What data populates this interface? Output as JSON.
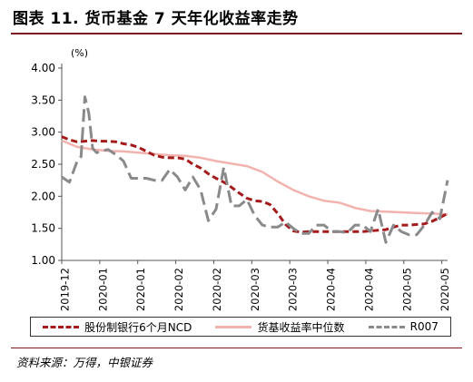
{
  "header": {
    "title": "图表 11. 货币基金 7 天年化收益率走势"
  },
  "footer": {
    "source": "资料来源：万得，中银证券"
  },
  "chart_data": {
    "type": "line",
    "y_unit_label": "(%)",
    "ylim": [
      1.0,
      4.0
    ],
    "y_ticks": [
      "1.00",
      "1.50",
      "2.00",
      "2.50",
      "3.00",
      "3.50",
      "4.00"
    ],
    "x_tick_labels": [
      "2019-12",
      "2020-01",
      "2020-01",
      "2020-02",
      "2020-02",
      "2020-03",
      "2020-03",
      "2020-04",
      "2020-04",
      "2020-05",
      "2020-05"
    ],
    "legend_position": "bottom",
    "grid": false,
    "series": [
      {
        "name": "股份制银行6个月NCD",
        "color": "#a51b1b",
        "dash": "long-dash",
        "t": [
          0,
          2,
          4,
          6,
          8,
          10,
          12,
          14,
          16,
          18,
          20,
          22,
          24,
          26,
          28,
          30,
          32,
          34,
          36,
          38,
          40,
          42,
          44,
          46,
          48,
          50,
          52,
          54,
          56,
          58,
          60,
          62,
          64,
          66,
          68,
          70,
          72,
          74,
          76,
          78,
          80,
          82,
          84,
          86,
          88,
          90,
          92,
          94,
          96,
          98,
          100
        ],
        "values": [
          2.93,
          2.88,
          2.85,
          2.86,
          2.87,
          2.86,
          2.86,
          2.85,
          2.82,
          2.8,
          2.76,
          2.7,
          2.64,
          2.61,
          2.6,
          2.6,
          2.58,
          2.5,
          2.44,
          2.35,
          2.28,
          2.22,
          2.14,
          2.05,
          1.97,
          1.93,
          1.92,
          1.87,
          1.73,
          1.56,
          1.46,
          1.44,
          1.45,
          1.45,
          1.45,
          1.45,
          1.45,
          1.45,
          1.45,
          1.45,
          1.46,
          1.47,
          1.48,
          1.52,
          1.55,
          1.55,
          1.56,
          1.57,
          1.61,
          1.67,
          1.73
        ]
      },
      {
        "name": "货基收益率中位数",
        "color": "#f2b3ae",
        "dash": "solid",
        "t": [
          0,
          4,
          8,
          12,
          16,
          20,
          24,
          28,
          32,
          36,
          40,
          44,
          48,
          52,
          56,
          60,
          64,
          68,
          72,
          76,
          80,
          84,
          88,
          92,
          96,
          100
        ],
        "values": [
          2.87,
          2.77,
          2.73,
          2.71,
          2.7,
          2.68,
          2.66,
          2.64,
          2.63,
          2.6,
          2.55,
          2.51,
          2.47,
          2.38,
          2.23,
          2.1,
          2.0,
          1.93,
          1.9,
          1.82,
          1.77,
          1.76,
          1.75,
          1.74,
          1.73,
          1.72
        ]
      },
      {
        "name": "R007",
        "color": "#8a8a8a",
        "dash": "long-dash",
        "t": [
          0,
          2,
          4,
          5,
          6,
          7,
          8,
          9,
          10,
          12,
          14,
          16,
          18,
          20,
          22,
          24,
          26,
          28,
          30,
          32,
          34,
          36,
          38,
          40,
          42,
          44,
          46,
          48,
          50,
          52,
          54,
          56,
          58,
          60,
          62,
          64,
          66,
          68,
          70,
          72,
          74,
          76,
          78,
          80,
          82,
          84,
          86,
          88,
          90,
          92,
          94,
          96,
          98,
          100
        ],
        "values": [
          2.3,
          2.22,
          2.55,
          2.62,
          3.55,
          3.3,
          2.75,
          2.68,
          2.7,
          2.73,
          2.65,
          2.55,
          2.28,
          2.28,
          2.28,
          2.25,
          2.25,
          2.42,
          2.3,
          2.1,
          2.3,
          2.1,
          1.62,
          1.8,
          2.45,
          1.85,
          1.85,
          1.95,
          1.7,
          1.55,
          1.52,
          1.52,
          1.6,
          1.5,
          1.42,
          1.42,
          1.55,
          1.55,
          1.45,
          1.45,
          1.43,
          1.55,
          1.55,
          1.45,
          1.8,
          1.28,
          1.55,
          1.45,
          1.4,
          1.4,
          1.55,
          1.75,
          1.65,
          2.25
        ]
      }
    ]
  }
}
